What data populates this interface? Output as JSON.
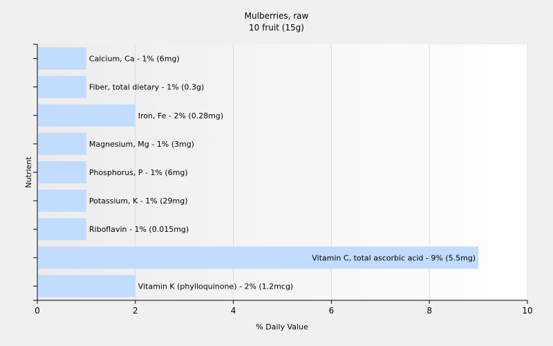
{
  "chart_data": {
    "type": "bar",
    "orientation": "horizontal",
    "title": "Mulberries, raw",
    "subtitle": "10 fruit (15g)",
    "xlabel": "% Daily Value",
    "ylabel": "Nutrient",
    "xlim": [
      0,
      10
    ],
    "xticks": [
      0,
      2,
      4,
      6,
      8,
      10
    ],
    "grid": true,
    "bar_color": "#c1dcff",
    "categories": [
      "Calcium, Ca",
      "Fiber, total dietary",
      "Iron, Fe",
      "Magnesium, Mg",
      "Phosphorus, P",
      "Potassium, K",
      "Riboflavin",
      "Vitamin C, total ascorbic acid",
      "Vitamin K (phylloquinone)"
    ],
    "values": [
      1,
      1,
      2,
      1,
      1,
      1,
      1,
      9,
      2
    ],
    "labels": [
      "Calcium, Ca - 1% (6mg)",
      "Fiber, total dietary - 1% (0.3g)",
      "Iron, Fe - 2% (0.28mg)",
      "Magnesium, Mg - 1% (3mg)",
      "Phosphorus, P - 1% (6mg)",
      "Potassium, K - 1% (29mg)",
      "Riboflavin - 1% (0.015mg)",
      "Vitamin C, total ascorbic acid - 9% (5.5mg)",
      "Vitamin K (phylloquinone) - 2% (1.2mcg)"
    ]
  }
}
